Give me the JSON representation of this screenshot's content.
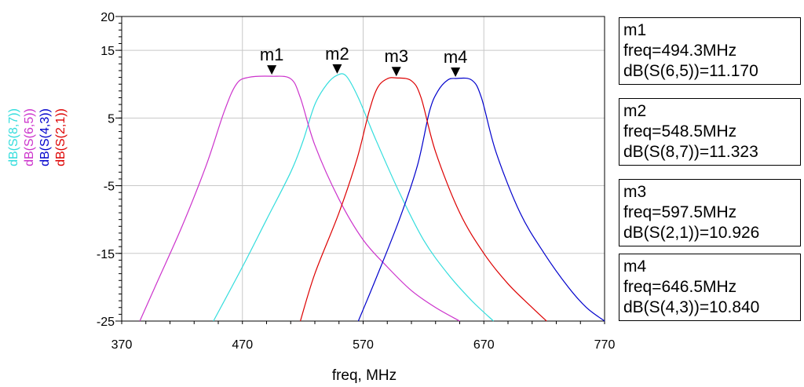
{
  "chart_data": {
    "type": "line",
    "title": "",
    "xlabel": "freq, MHz",
    "ylabel": "",
    "xlim": [
      370,
      770
    ],
    "ylim": [
      -25,
      20
    ],
    "x_ticks": [
      "370",
      "470",
      "570",
      "670",
      "770"
    ],
    "y_ticks": [
      "20",
      "15",
      "5",
      "-5",
      "-15",
      "-25"
    ],
    "grid": true,
    "series": [
      {
        "name": "dB(S(8,7))",
        "color": "#33dddd",
        "x": [
          446,
          470,
          490,
          510,
          520,
          530,
          540,
          548.5,
          556,
          566,
          580,
          600,
          620,
          640,
          660,
          678
        ],
        "y": [
          -25,
          -17,
          -10,
          -3,
          1.5,
          7,
          10,
          11.323,
          11.2,
          8,
          2,
          -6,
          -13,
          -18,
          -22,
          -25
        ]
      },
      {
        "name": "dB(S(6,5))",
        "color": "#cc33cc",
        "x": [
          385,
          400,
          420,
          440,
          455,
          465,
          475,
          494.3,
          510,
          518,
          530,
          550,
          570,
          590,
          610,
          630,
          650
        ],
        "y": [
          -25,
          -19,
          -11,
          -2,
          6,
          10,
          11,
          11.17,
          10.8,
          8,
          1,
          -7,
          -13,
          -17,
          -20.5,
          -23,
          -25
        ]
      },
      {
        "name": "dB(S(4,3))",
        "color": "#0000cc",
        "x": [
          566,
          580,
          600,
          615,
          625,
          632,
          640,
          646.5,
          660,
          668,
          680,
          700,
          720,
          740,
          755,
          770
        ],
        "y": [
          -25,
          -19,
          -10,
          -2,
          6,
          9,
          10.6,
          10.84,
          10.6,
          8,
          0,
          -9,
          -15,
          -20,
          -23,
          -25
        ]
      },
      {
        "name": "dB(S(2,1))",
        "color": "#dd0000",
        "x": [
          518,
          530,
          550,
          565,
          575,
          582,
          590,
          597.5,
          610,
          618,
          630,
          650,
          670,
          690,
          710,
          722
        ],
        "y": [
          -25,
          -18,
          -9,
          -1,
          6,
          9.5,
          10.8,
          10.926,
          10.5,
          8,
          0,
          -9,
          -15,
          -19.5,
          -23,
          -25
        ]
      }
    ],
    "markers": [
      {
        "label": "m1",
        "x": 494.3,
        "y": 11.17
      },
      {
        "label": "m2",
        "x": 548.5,
        "y": 11.323
      },
      {
        "label": "m3",
        "x": 597.5,
        "y": 10.926
      },
      {
        "label": "m4",
        "x": 646.5,
        "y": 10.84
      }
    ]
  },
  "marker_readouts": [
    {
      "name": "m1",
      "freq": "freq=494.3MHz",
      "value": "dB(S(6,5))=11.170"
    },
    {
      "name": "m2",
      "freq": "freq=548.5MHz",
      "value": "dB(S(8,7))=11.323"
    },
    {
      "name": "m3",
      "freq": "freq=597.5MHz",
      "value": "dB(S(2,1))=10.926"
    },
    {
      "name": "m4",
      "freq": "freq=646.5MHz",
      "value": "dB(S(4,3))=10.840"
    }
  ]
}
